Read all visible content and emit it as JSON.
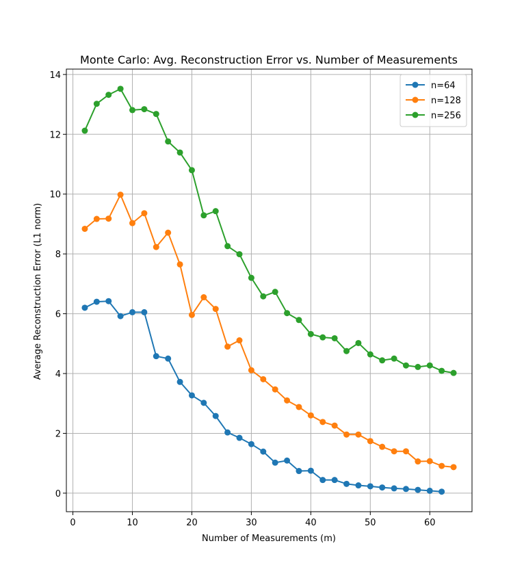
{
  "chart_data": {
    "type": "line",
    "title": "Monte Carlo: Avg. Reconstruction Error vs. Number of Measurements",
    "xlabel": "Number of Measurements (m)",
    "ylabel": "Average Reconstruction Error (L1 norm)",
    "xlim": [
      -1.1,
      67.1
    ],
    "ylim": [
      -0.62,
      14.18
    ],
    "xticks": [
      0,
      10,
      20,
      30,
      40,
      50,
      60
    ],
    "xtick_labels": [
      "0",
      "10",
      "20",
      "30",
      "40",
      "50",
      "60"
    ],
    "yticks": [
      0,
      2,
      4,
      6,
      8,
      10,
      12,
      14
    ],
    "ytick_labels": [
      "0",
      "2",
      "4",
      "6",
      "8",
      "10",
      "12",
      "14"
    ],
    "grid": true,
    "legend_position": "top-right",
    "series": [
      {
        "name": "n=64",
        "color": "#1f77b4",
        "marker": "circle",
        "x": [
          2,
          4,
          6,
          8,
          10,
          12,
          14,
          16,
          18,
          20,
          22,
          24,
          26,
          28,
          30,
          32,
          34,
          36,
          38,
          40,
          42,
          44,
          46,
          48,
          50,
          52,
          54,
          56,
          58,
          60,
          62
        ],
        "values": [
          6.2,
          6.4,
          6.42,
          5.92,
          6.05,
          6.05,
          4.58,
          4.5,
          3.72,
          3.27,
          3.02,
          2.58,
          2.03,
          1.85,
          1.64,
          1.39,
          1.02,
          1.09,
          0.74,
          0.75,
          0.44,
          0.44,
          0.31,
          0.26,
          0.23,
          0.19,
          0.16,
          0.14,
          0.11,
          0.08,
          0.05
        ]
      },
      {
        "name": "n=128",
        "color": "#ff7f0e",
        "marker": "circle",
        "x": [
          2,
          4,
          6,
          8,
          10,
          12,
          14,
          16,
          18,
          20,
          22,
          24,
          26,
          28,
          30,
          32,
          34,
          36,
          38,
          40,
          42,
          44,
          46,
          48,
          50,
          52,
          54,
          56,
          58,
          60,
          62,
          64
        ],
        "values": [
          8.84,
          9.17,
          9.18,
          9.98,
          9.03,
          9.36,
          8.23,
          8.71,
          7.65,
          5.96,
          6.55,
          6.16,
          4.9,
          5.11,
          4.11,
          3.81,
          3.47,
          3.1,
          2.88,
          2.6,
          2.38,
          2.26,
          1.96,
          1.96,
          1.74,
          1.55,
          1.4,
          1.4,
          1.06,
          1.07,
          0.91,
          0.87
        ]
      },
      {
        "name": "n=256",
        "color": "#2ca02c",
        "marker": "circle",
        "x": [
          2,
          4,
          6,
          8,
          10,
          12,
          14,
          16,
          18,
          20,
          22,
          24,
          26,
          28,
          30,
          32,
          34,
          36,
          38,
          40,
          42,
          44,
          46,
          48,
          50,
          52,
          54,
          56,
          58,
          60,
          62,
          64
        ],
        "values": [
          12.12,
          13.02,
          13.32,
          13.52,
          12.81,
          12.84,
          12.68,
          11.76,
          11.39,
          10.8,
          9.29,
          9.43,
          8.26,
          7.99,
          7.2,
          6.58,
          6.73,
          6.02,
          5.79,
          5.32,
          5.21,
          5.18,
          4.75,
          5.02,
          4.64,
          4.44,
          4.5,
          4.27,
          4.22,
          4.27,
          4.09,
          4.02
        ]
      }
    ]
  }
}
